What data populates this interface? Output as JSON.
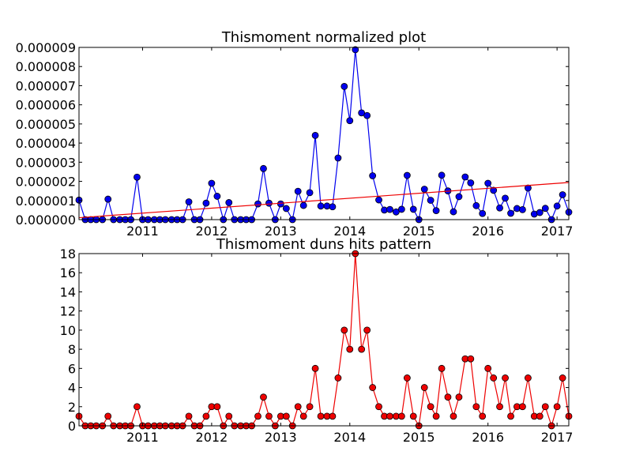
{
  "chart_data": [
    {
      "type": "line",
      "title": "Thismoment normalized plot",
      "xlabel": "",
      "ylabel": "",
      "xlim": [
        2010.08,
        2017.17
      ],
      "ylim": [
        0,
        9e-06
      ],
      "x_ticks": [
        2011,
        2012,
        2013,
        2014,
        2015,
        2016,
        2017
      ],
      "x_tick_labels": [
        "2011",
        "2012",
        "2013",
        "2014",
        "2015",
        "2016",
        "2017"
      ],
      "y_ticks": [
        0,
        1e-06,
        2e-06,
        3e-06,
        4e-06,
        5e-06,
        6e-06,
        7e-06,
        8e-06,
        9e-06
      ],
      "y_tick_labels": [
        "0.000000",
        "0.000001",
        "0.000002",
        "0.000003",
        "0.000004",
        "0.000005",
        "0.000006",
        "0.000007",
        "0.000008",
        "0.000009"
      ],
      "grid": false,
      "series": [
        {
          "color": "#0000ee",
          "marker": "circle",
          "x": [
            2010.08,
            2010.17,
            2010.25,
            2010.33,
            2010.42,
            2010.5,
            2010.58,
            2010.67,
            2010.75,
            2010.83,
            2010.92,
            2011.0,
            2011.08,
            2011.17,
            2011.25,
            2011.33,
            2011.42,
            2011.5,
            2011.58,
            2011.67,
            2011.75,
            2011.83,
            2011.92,
            2012.0,
            2012.08,
            2012.17,
            2012.25,
            2012.33,
            2012.42,
            2012.5,
            2012.58,
            2012.67,
            2012.75,
            2012.83,
            2012.92,
            2013.0,
            2013.08,
            2013.17,
            2013.25,
            2013.33,
            2013.42,
            2013.5,
            2013.58,
            2013.67,
            2013.75,
            2013.83,
            2013.92,
            2014.0,
            2014.08,
            2014.17,
            2014.25,
            2014.33,
            2014.42,
            2014.5,
            2014.58,
            2014.67,
            2014.75,
            2014.83,
            2014.92,
            2015.0,
            2015.08,
            2015.17,
            2015.25,
            2015.33,
            2015.42,
            2015.5,
            2015.58,
            2015.67,
            2015.75,
            2015.83,
            2015.92,
            2016.0,
            2016.08,
            2016.17,
            2016.25,
            2016.33,
            2016.42,
            2016.5,
            2016.58,
            2016.67,
            2016.75,
            2016.83,
            2016.92,
            2017.0,
            2017.08,
            2017.17
          ],
          "values": [
            1.02e-06,
            0.0,
            0.0,
            0.0,
            0.0,
            1.07e-06,
            0.0,
            0.0,
            0.0,
            0.0,
            2.22e-06,
            0.0,
            0.0,
            0.0,
            0.0,
            0.0,
            0.0,
            0.0,
            0.0,
            9.3e-07,
            0.0,
            0.0,
            8.6e-07,
            1.9e-06,
            1.22e-06,
            0.0,
            8.9e-07,
            0.0,
            0.0,
            0.0,
            0.0,
            8.2e-07,
            2.67e-06,
            8.6e-07,
            0.0,
            8.2e-07,
            5.8e-07,
            0.0,
            1.48e-06,
            7.4e-07,
            1.41e-06,
            4.4e-06,
            7.1e-07,
            7.1e-07,
            6.7e-07,
            3.22e-06,
            6.96e-06,
            5.17e-06,
            8.88e-06,
            5.58e-06,
            5.44e-06,
            2.29e-06,
            1.03e-06,
            5e-07,
            5.3e-07,
            4e-07,
            5.4e-07,
            2.31e-06,
            5.4e-07,
            0.0,
            1.59e-06,
            1.01e-06,
            4.7e-07,
            2.32e-06,
            1.5e-06,
            4.1e-07,
            1.2e-06,
            2.23e-06,
            1.92e-06,
            7.3e-07,
            3.2e-07,
            1.9e-06,
            1.53e-06,
            6.1e-07,
            1.12e-06,
            3.3e-07,
            5.8e-07,
            5.2e-07,
            1.65e-06,
            2.9e-07,
            3.7e-07,
            5.9e-07,
            0.0,
            7.1e-07,
            1.3e-06,
            3.9e-07
          ]
        },
        {
          "color": "#ee0000",
          "marker": "none",
          "x": [
            2010.08,
            2017.17
          ],
          "values": [
            1e-07,
            1.94e-06
          ]
        }
      ]
    },
    {
      "type": "line",
      "title": "Thismoment duns hits pattern",
      "xlabel": "",
      "ylabel": "",
      "xlim": [
        2010.08,
        2017.17
      ],
      "ylim": [
        0,
        18
      ],
      "x_ticks": [
        2011,
        2012,
        2013,
        2014,
        2015,
        2016,
        2017
      ],
      "x_tick_labels": [
        "2011",
        "2012",
        "2013",
        "2014",
        "2015",
        "2016",
        "2017"
      ],
      "y_ticks": [
        0,
        2,
        4,
        6,
        8,
        10,
        12,
        14,
        16,
        18
      ],
      "y_tick_labels": [
        "0",
        "2",
        "4",
        "6",
        "8",
        "10",
        "12",
        "14",
        "16",
        "18"
      ],
      "grid": false,
      "series": [
        {
          "color": "#ee0000",
          "marker": "circle",
          "x": [
            2010.08,
            2010.17,
            2010.25,
            2010.33,
            2010.42,
            2010.5,
            2010.58,
            2010.67,
            2010.75,
            2010.83,
            2010.92,
            2011.0,
            2011.08,
            2011.17,
            2011.25,
            2011.33,
            2011.42,
            2011.5,
            2011.58,
            2011.67,
            2011.75,
            2011.83,
            2011.92,
            2012.0,
            2012.08,
            2012.17,
            2012.25,
            2012.33,
            2012.42,
            2012.5,
            2012.58,
            2012.67,
            2012.75,
            2012.83,
            2012.92,
            2013.0,
            2013.08,
            2013.17,
            2013.25,
            2013.33,
            2013.42,
            2013.5,
            2013.58,
            2013.67,
            2013.75,
            2013.83,
            2013.92,
            2014.0,
            2014.08,
            2014.17,
            2014.25,
            2014.33,
            2014.42,
            2014.5,
            2014.58,
            2014.67,
            2014.75,
            2014.83,
            2014.92,
            2015.0,
            2015.08,
            2015.17,
            2015.25,
            2015.33,
            2015.42,
            2015.5,
            2015.58,
            2015.67,
            2015.75,
            2015.83,
            2015.92,
            2016.0,
            2016.08,
            2016.17,
            2016.25,
            2016.33,
            2016.42,
            2016.5,
            2016.58,
            2016.67,
            2016.75,
            2016.83,
            2016.92,
            2017.0,
            2017.08,
            2017.17
          ],
          "values": [
            1,
            0,
            0,
            0,
            0,
            1,
            0,
            0,
            0,
            0,
            2,
            0,
            0,
            0,
            0,
            0,
            0,
            0,
            0,
            1,
            0,
            0,
            1,
            2,
            2,
            0,
            1,
            0,
            0,
            0,
            0,
            1,
            3,
            1,
            0,
            1,
            1,
            0,
            2,
            1,
            2,
            6,
            1,
            1,
            1,
            5,
            10,
            8,
            18,
            8,
            10,
            4,
            2,
            1,
            1,
            1,
            1,
            5,
            1,
            0,
            4,
            2,
            1,
            6,
            3,
            1,
            3,
            7,
            7,
            2,
            1,
            6,
            5,
            2,
            5,
            1,
            2,
            2,
            5,
            1,
            1,
            2,
            0,
            2,
            5,
            1
          ]
        }
      ]
    }
  ]
}
